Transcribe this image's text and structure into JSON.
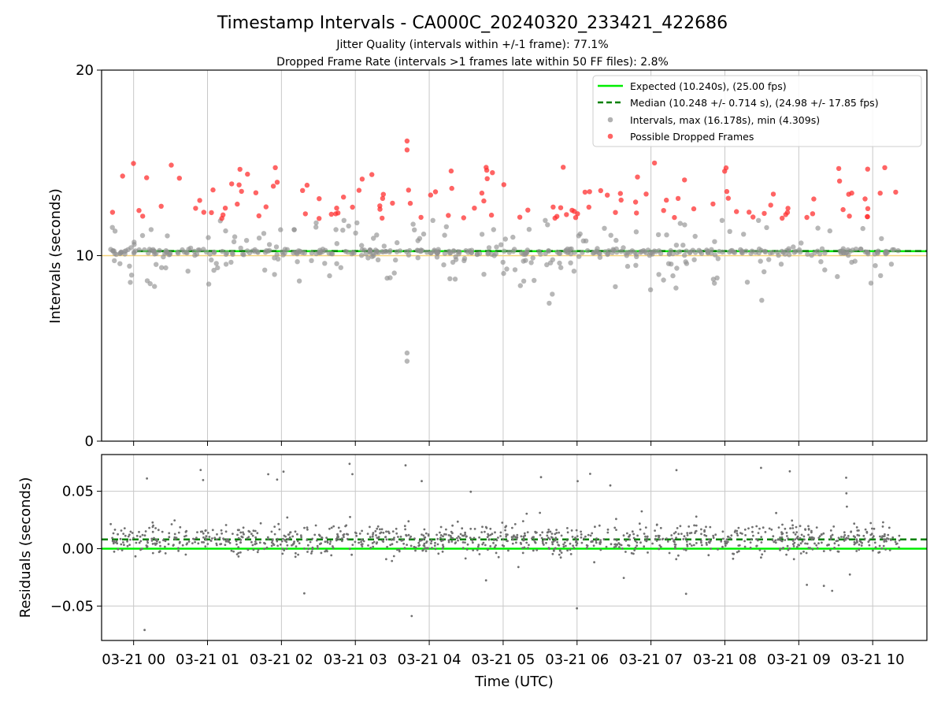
{
  "chart_data": [
    {
      "type": "scatter",
      "title": "Timestamp Intervals - CA000C_20240320_233421_422686",
      "subtitles": [
        "Jitter Quality (intervals within +/-1 frame): 77.1%",
        "Dropped Frame Rate (intervals >1 frames late within 50 FF files): 2.8%"
      ],
      "ylabel": "Intervals (seconds)",
      "ylim": [
        0,
        20
      ],
      "yticks": [
        0,
        10,
        20
      ],
      "xlim": [
        "2024-03-20T23:34:00Z",
        "2024-03-21T10:44:00Z"
      ],
      "xticks": [
        {
          "time": "2024-03-21T00:00:00Z",
          "label": "03-21 00"
        },
        {
          "time": "2024-03-21T01:00:00Z",
          "label": "03-21 01"
        },
        {
          "time": "2024-03-21T02:00:00Z",
          "label": "03-21 02"
        },
        {
          "time": "2024-03-21T03:00:00Z",
          "label": "03-21 03"
        },
        {
          "time": "2024-03-21T04:00:00Z",
          "label": "03-21 04"
        },
        {
          "time": "2024-03-21T05:00:00Z",
          "label": "03-21 05"
        },
        {
          "time": "2024-03-21T06:00:00Z",
          "label": "03-21 06"
        },
        {
          "time": "2024-03-21T07:00:00Z",
          "label": "03-21 07"
        },
        {
          "time": "2024-03-21T08:00:00Z",
          "label": "03-21 08"
        },
        {
          "time": "2024-03-21T09:00:00Z",
          "label": "03-21 09"
        },
        {
          "time": "2024-03-21T10:00:00Z",
          "label": "03-21 10"
        }
      ],
      "grid": "vertical",
      "legend_position": "top-right",
      "reference_lines": [
        {
          "name": "Expected (10.240s), (25.00 fps)",
          "y": 10.24,
          "color": "#00ee00",
          "style": "solid"
        },
        {
          "name": "Median (10.248 +/- 0.714 s), (24.98 +/- 17.85 fps)",
          "y": 10.248,
          "color": "#008000",
          "style": "dashed"
        },
        {
          "y": 10.0,
          "color": "#f5d27a",
          "style": "solid"
        }
      ],
      "series": [
        {
          "name": "Intervals, max (16.178s), min (4.309s)",
          "color": "#909090",
          "max": 16.178,
          "min": 4.309
        },
        {
          "name": "Possible Dropped Frames",
          "color": "#ff3030"
        }
      ]
    },
    {
      "type": "scatter",
      "ylabel": "Residuals (seconds)",
      "xlabel": "Time (UTC)",
      "ylim": [
        -0.08,
        0.082
      ],
      "yticks": [
        -0.05,
        0.0,
        0.05
      ],
      "ytick_labels": [
        "−0.05",
        "0.00",
        "0.05"
      ],
      "grid": "both",
      "reference_lines": [
        {
          "y": 0.0,
          "color": "#00ee00",
          "style": "solid"
        },
        {
          "y": 0.008,
          "color": "#008000",
          "style": "dashed"
        }
      ],
      "series": [
        {
          "color": "#707070"
        }
      ]
    }
  ]
}
